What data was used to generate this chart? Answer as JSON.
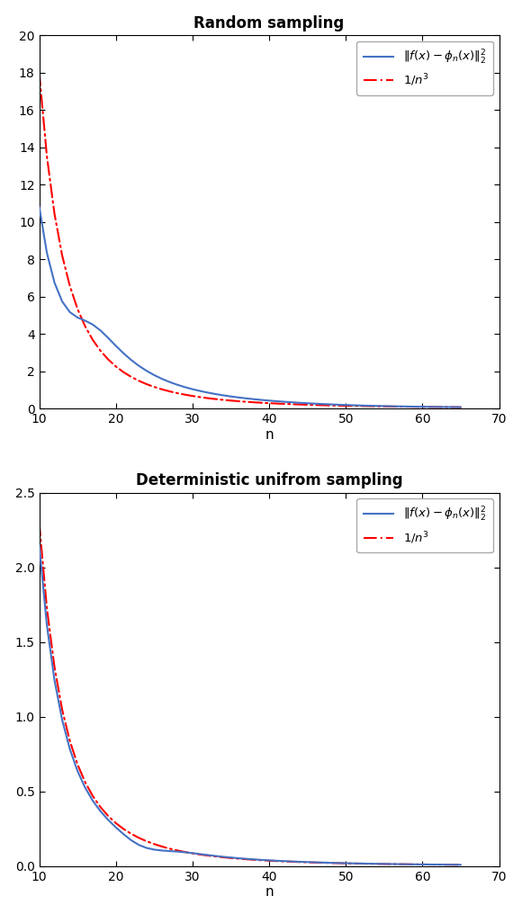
{
  "title1": "Random sampling",
  "title2": "Deterministic unifrom sampling",
  "xlabel": "n",
  "blue_color": "#4472C4",
  "red_color": "#FF0000",
  "xlim": [
    10,
    70
  ],
  "ylim1": [
    0,
    20
  ],
  "ylim2": [
    0,
    2.5
  ],
  "yticks1": [
    0,
    2,
    4,
    6,
    8,
    10,
    12,
    14,
    16,
    18,
    20
  ],
  "yticks2": [
    0,
    0.5,
    1.0,
    1.5,
    2.0,
    2.5
  ],
  "xticks": [
    10,
    20,
    30,
    40,
    50,
    60,
    70
  ],
  "red_coeff1": 18000.0,
  "red_coeff2": 2300.0,
  "n_start": 10,
  "n_end": 65
}
